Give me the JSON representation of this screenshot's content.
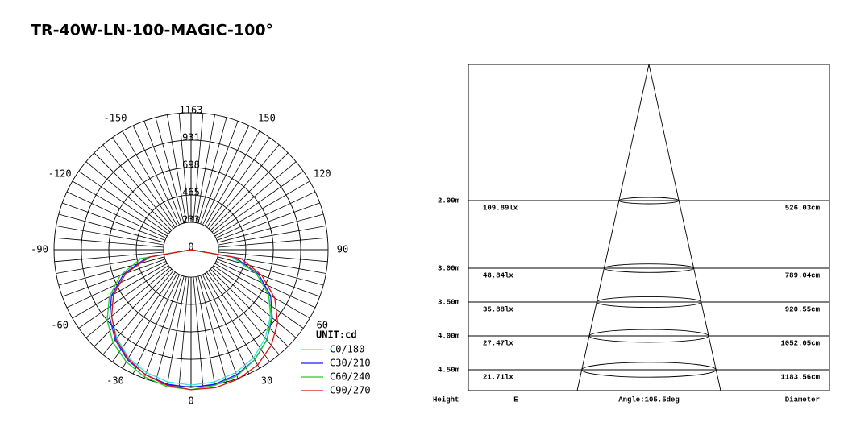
{
  "title": "TR-40W-LN-100-MAGIC-100°",
  "chart_data": {
    "type": "polar",
    "rticks": [
      0,
      233,
      465,
      698,
      931,
      1163
    ],
    "rlim": [
      0,
      1163
    ],
    "angle_ticks": [
      -150,
      -120,
      -90,
      -60,
      -30,
      0,
      30,
      60,
      90,
      120,
      150
    ],
    "unit": "UNIT:cd",
    "angles": [
      -90,
      -80,
      -70,
      -60,
      -50,
      -40,
      -30,
      -20,
      -10,
      0,
      10,
      20,
      30,
      40,
      50,
      60,
      70,
      80,
      90
    ],
    "series": [
      {
        "name": "C0/180",
        "color": "#33e6e6",
        "values": [
          0,
          350,
          590,
          760,
          880,
          980,
          1060,
          1110,
          1140,
          1150,
          1140,
          1110,
          1060,
          980,
          880,
          760,
          590,
          350,
          0
        ]
      },
      {
        "name": "C30/210",
        "color": "#1a1aff",
        "values": [
          0,
          380,
          610,
          780,
          900,
          1000,
          1080,
          1130,
          1160,
          1170,
          1160,
          1130,
          1080,
          1000,
          900,
          780,
          610,
          380,
          0
        ]
      },
      {
        "name": "C60/240",
        "color": "#22cc22",
        "values": [
          0,
          430,
          640,
          800,
          930,
          1030,
          1100,
          1150,
          1180,
          1190,
          1170,
          1140,
          1080,
          1000,
          890,
          760,
          590,
          360,
          0
        ]
      },
      {
        "name": "C90/270",
        "color": "#dd1111",
        "values": [
          0,
          360,
          590,
          760,
          880,
          990,
          1070,
          1130,
          1170,
          1190,
          1190,
          1170,
          1130,
          1060,
          960,
          820,
          640,
          430,
          0
        ]
      }
    ]
  },
  "beam": {
    "rows": [
      {
        "height": "2.00m",
        "lux": "109.89lx",
        "diameter": "526.03cm"
      },
      {
        "height": "3.00m",
        "lux": "48.84lx",
        "diameter": "789.04cm"
      },
      {
        "height": "3.50m",
        "lux": "35.88lx",
        "diameter": "920.55cm"
      },
      {
        "height": "4.00m",
        "lux": "27.47lx",
        "diameter": "1052.05cm"
      },
      {
        "height": "4.50m",
        "lux": "21.71lx",
        "diameter": "1183.56cm"
      }
    ],
    "footer": {
      "height": "Height",
      "e": "E",
      "angle": "Angle:105.5deg",
      "diameter": "Diameter"
    }
  }
}
